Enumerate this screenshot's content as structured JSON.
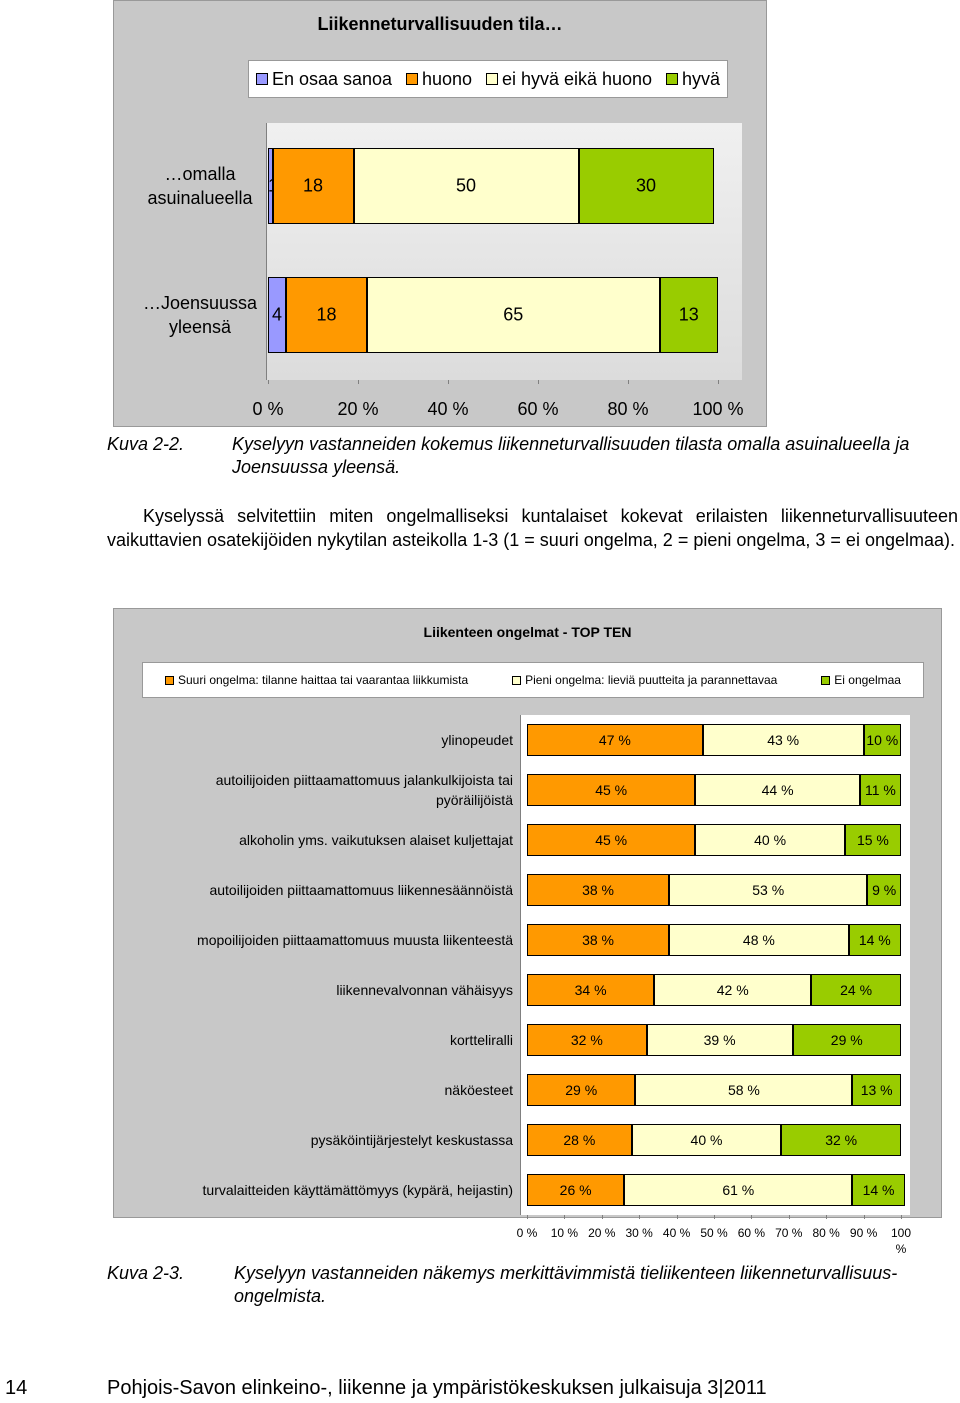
{
  "chart_data": [
    {
      "type": "stacked-hbar",
      "title": "Liikenneturvallisuuden tila…",
      "categories": [
        "…omalla asuinalueella",
        "…Joensuussa yleensä"
      ],
      "series": [
        {
          "name": "En osaa sanoa",
          "color": "#9999ff",
          "values": [
            1,
            4
          ]
        },
        {
          "name": "huono",
          "color": "#ff9900",
          "values": [
            18,
            18
          ]
        },
        {
          "name": "ei hyvä eikä huono",
          "color": "#ffffcc",
          "values": [
            50,
            65
          ]
        },
        {
          "name": "hyvä",
          "color": "#99cc00",
          "values": [
            30,
            13
          ]
        }
      ],
      "xlim": [
        0,
        100
      ],
      "xticks": [
        {
          "value": 0,
          "label": "0 %"
        },
        {
          "value": 20,
          "label": "20 %"
        },
        {
          "value": 40,
          "label": "40 %"
        },
        {
          "value": 60,
          "label": "60 %"
        },
        {
          "value": 80,
          "label": "80 %"
        },
        {
          "value": 100,
          "label": "100 %"
        }
      ],
      "legend": "top"
    },
    {
      "type": "stacked-hbar",
      "title": "Liikenteen ongelmat - TOP TEN",
      "categories": [
        "ylinopeudet",
        "autoilijoiden piittaamattomuus jalankulkijoista tai pyöräilijöistä",
        "alkoholin yms. vaikutuksen alaiset kuljettajat",
        "autoilijoiden piittaamattomuus liikennesäännöistä",
        "mopoilijoiden piittaamattomuus muusta liikenteestä",
        "liikennevalvonnan vähäisyys",
        "kortteliralli",
        "näköesteet",
        "pysäköintijärjestelyt keskustassa",
        "turvalaitteiden käyttämättömyys (kypärä, heijastin)"
      ],
      "series": [
        {
          "name": "Suuri ongelma: tilanne haittaa tai vaarantaa liikkumista",
          "color": "#ff9900",
          "values": [
            47,
            45,
            45,
            38,
            38,
            34,
            32,
            29,
            28,
            26
          ],
          "value_labels": [
            "47 %",
            "45 %",
            "45 %",
            "38 %",
            "38 %",
            "34 %",
            "32 %",
            "29 %",
            "28 %",
            "26 %"
          ]
        },
        {
          "name": "Pieni ongelma: lieviä puutteita ja parannettavaa",
          "color": "#ffffcc",
          "values": [
            43,
            44,
            40,
            53,
            48,
            42,
            39,
            58,
            40,
            61
          ],
          "value_labels": [
            "43 %",
            "44 %",
            "40 %",
            "53 %",
            "48 %",
            "42 %",
            "39 %",
            "58 %",
            "40 %",
            "61 %"
          ]
        },
        {
          "name": "Ei ongelmaa",
          "color": "#99cc00",
          "values": [
            10,
            11,
            15,
            9,
            14,
            24,
            29,
            13,
            32,
            14
          ],
          "value_labels": [
            "10 %",
            "11 %",
            "15 %",
            "9 %",
            "14 %",
            "24 %",
            "29 %",
            "13 %",
            "32 %",
            "14 %"
          ]
        }
      ],
      "xlim": [
        0,
        100
      ],
      "xticks": [
        {
          "value": 0,
          "label": "0 %"
        },
        {
          "value": 10,
          "label": "10 %"
        },
        {
          "value": 20,
          "label": "20 %"
        },
        {
          "value": 30,
          "label": "30 %"
        },
        {
          "value": 40,
          "label": "40 %"
        },
        {
          "value": 50,
          "label": "50 %"
        },
        {
          "value": 60,
          "label": "60 %"
        },
        {
          "value": 70,
          "label": "70 %"
        },
        {
          "value": 80,
          "label": "80 %"
        },
        {
          "value": 90,
          "label": "90 %"
        },
        {
          "value": 100,
          "label": "100 %"
        }
      ],
      "legend": "top"
    }
  ],
  "captions": [
    {
      "number": "Kuva 2-2.",
      "text": "Kyselyyn vastanneiden kokemus liikenneturvallisuuden tilasta omalla asuinalueella ja Joensuussa yleensä."
    },
    {
      "number": "Kuva 2-3.",
      "text": "Kyselyyn vastanneiden näkemys merkittävimmistä tieliikenteen liikenneturvallisuus­ongelmista."
    }
  ],
  "paragraph": "Kyselyssä selvitettiin miten ongelmalliseksi kuntalaiset kokevat erilaisten liikenneturval­lisuuteen vaikuttavien osatekijöiden nykytilan asteikolla 1-3 (1 = suuri ongelma, 2 = pieni ongelma, 3 = ei ongelmaa).",
  "footer": {
    "page": "14",
    "text": "Pohjois-Savon elinkeino-, liikenne ja ympäristökeskuksen julkaisuja 3|2011"
  }
}
